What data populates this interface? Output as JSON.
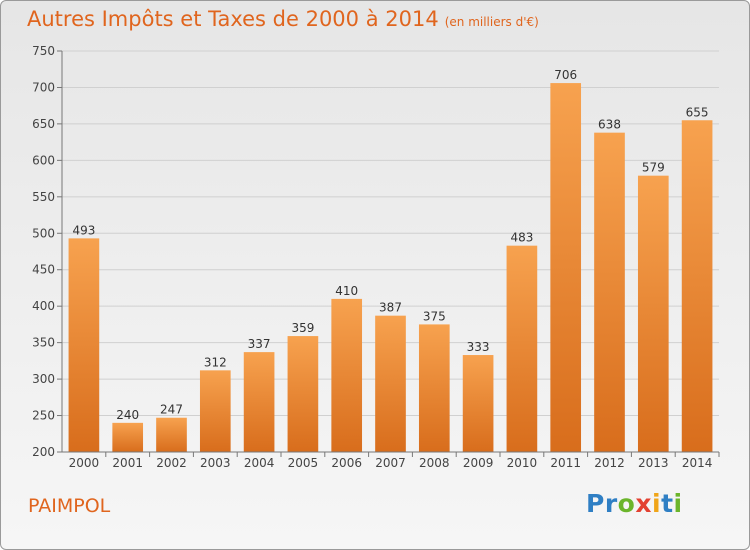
{
  "header": {
    "title": "Autres Impôts et Taxes de 2000 à 2014",
    "subtitle": "(en milliers d'€)"
  },
  "footer": {
    "place": "PAIMPOL",
    "logo": [
      "P",
      "r",
      "o",
      "x",
      "i",
      "t",
      "i"
    ],
    "logo_colors": [
      "#2f7fc4",
      "#2f7fc4",
      "#6bb52b",
      "#e34131",
      "#f0a519",
      "#2f7fc4",
      "#6bb52b"
    ]
  },
  "colors": {
    "bar_light": "#f7a24f",
    "bar_dark": "#d86d1c",
    "grid": "#d0d0d0"
  },
  "chart_data": {
    "type": "bar",
    "title": "Autres Impôts et Taxes de 2000 à 2014",
    "subtitle": "(en milliers d'€)",
    "categories": [
      "2000",
      "2001",
      "2002",
      "2003",
      "2004",
      "2005",
      "2006",
      "2007",
      "2008",
      "2009",
      "2010",
      "2011",
      "2012",
      "2013",
      "2014"
    ],
    "values": [
      493,
      240,
      247,
      312,
      337,
      359,
      410,
      387,
      375,
      333,
      483,
      706,
      638,
      579,
      655
    ],
    "ylim": [
      200,
      750
    ],
    "yticks": [
      200,
      250,
      300,
      350,
      400,
      450,
      500,
      550,
      600,
      650,
      700,
      750
    ],
    "grid": true
  }
}
